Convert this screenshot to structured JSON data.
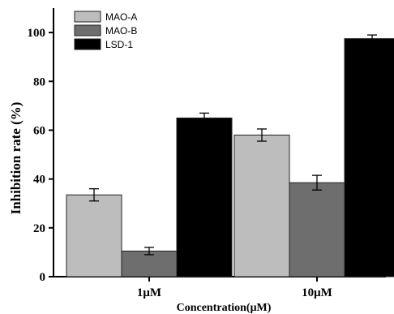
{
  "chart_data": {
    "type": "bar",
    "categories": [
      "1μM",
      "10μM"
    ],
    "series": [
      {
        "name": "MAO-A",
        "values": [
          33.5,
          58.0
        ],
        "errors": [
          2.5,
          2.5
        ],
        "color": "#bdbdbd"
      },
      {
        "name": "MAO-B",
        "values": [
          10.5,
          38.5
        ],
        "errors": [
          1.5,
          3.0
        ],
        "color": "#6e6e6e"
      },
      {
        "name": "LSD-1",
        "values": [
          65.0,
          97.5
        ],
        "errors": [
          2.0,
          1.5
        ],
        "color": "#000000"
      }
    ],
    "xlabel": "Concentration(μM)",
    "ylabel": "Inhibition rate (%)",
    "ylim": [
      0,
      110
    ],
    "yticks": [
      "0",
      "20",
      "40",
      "60",
      "80",
      "100"
    ],
    "legend_position": "top-left",
    "grid": false
  }
}
